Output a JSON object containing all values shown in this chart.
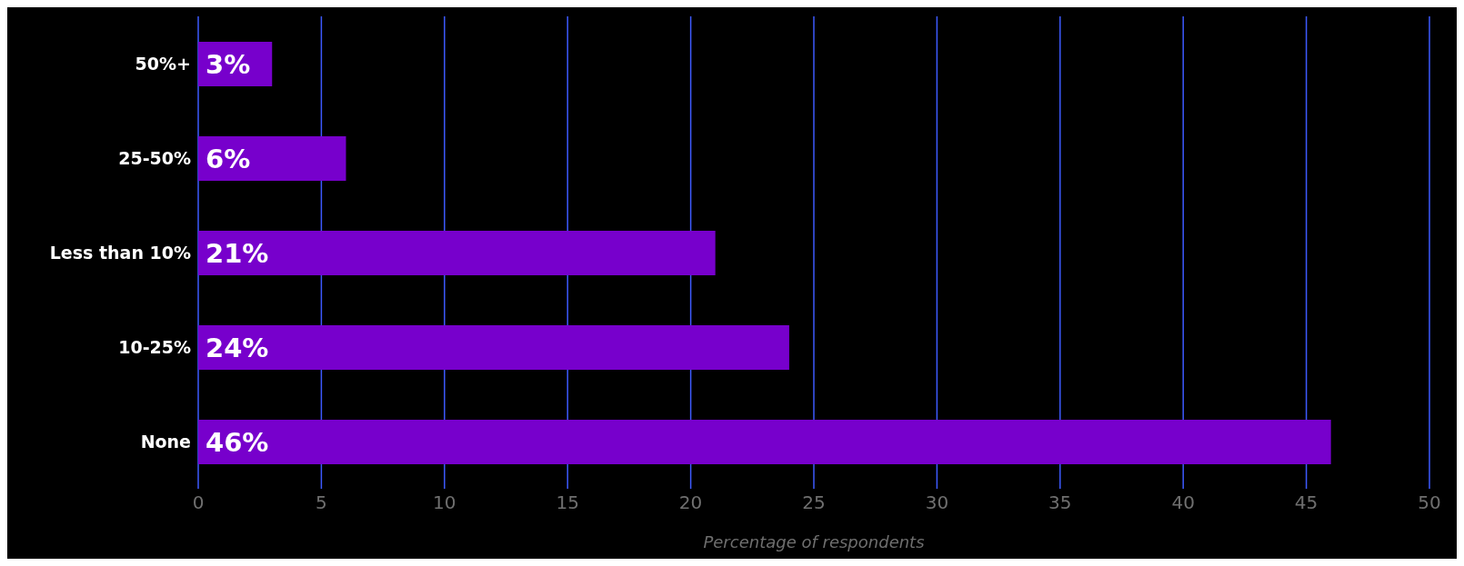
{
  "chart_data": {
    "type": "bar",
    "orientation": "horizontal",
    "xlabel": "Percentage of respondents",
    "categories": [
      "50%+",
      "25-50%",
      "Less than 10%",
      "10-25%",
      "None"
    ],
    "values": [
      3,
      6,
      21,
      24,
      46
    ],
    "value_labels": [
      "3%",
      "6%",
      "21%",
      "24%",
      "46%"
    ],
    "color": "#7700cc",
    "xlim": [
      0,
      50
    ],
    "xticks": [
      0,
      5,
      10,
      15,
      20,
      25,
      30,
      35,
      40,
      45,
      50
    ],
    "grid": "x"
  }
}
